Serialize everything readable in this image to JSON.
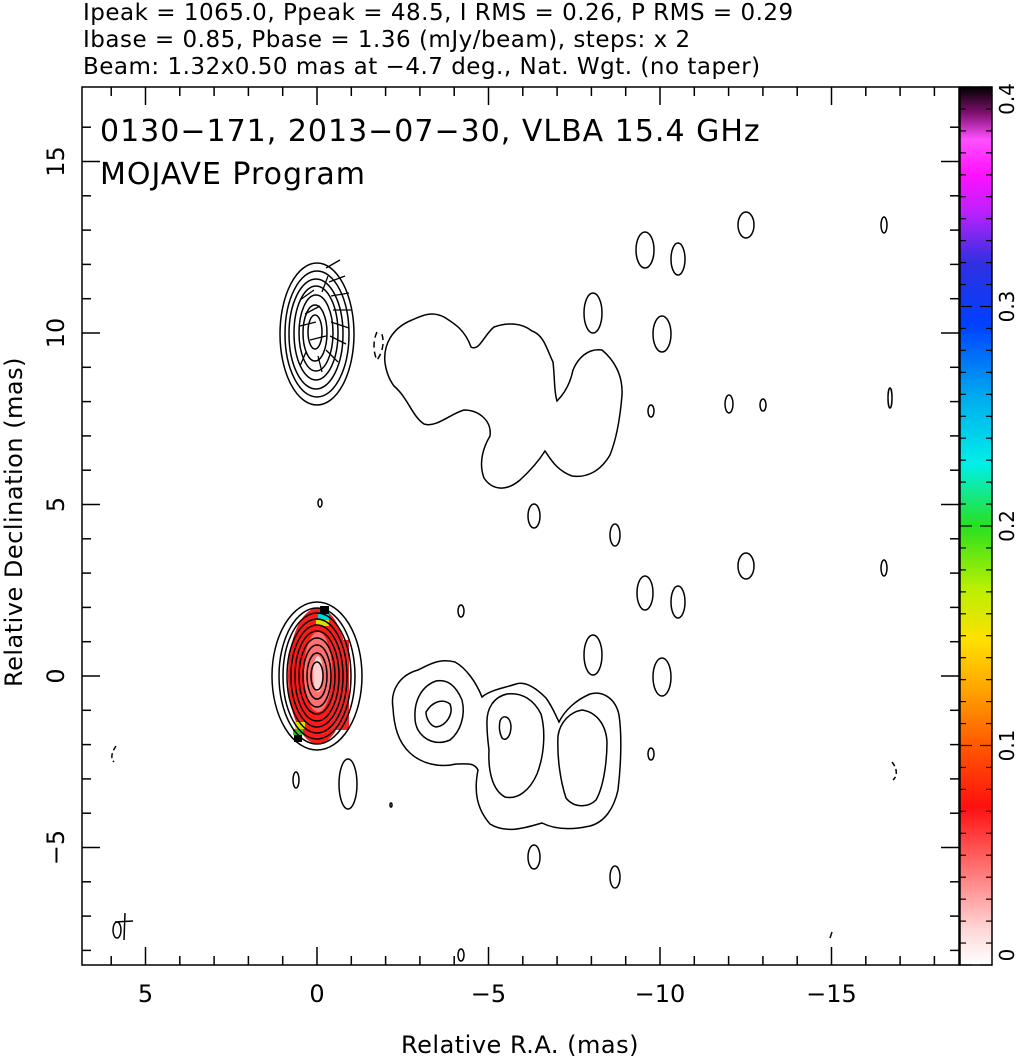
{
  "header": {
    "line1": "Ipeak = 1065.0, Ppeak = 48.5, I RMS = 0.26, P RMS = 0.29",
    "line2": "Ibase = 0.85, Pbase = 1.36 (mJy/beam), steps: x 2",
    "line3": "Beam: 1.32x0.50 mas at −4.7 deg., Nat. Wgt. (no taper)"
  },
  "chart_data": {
    "type": "contour",
    "title": "0130−171, 2013−07−30, VLBA 15.4 GHz",
    "subtitle": "MOJAVE Program",
    "xlabel": "Relative R.A. (mas)",
    "ylabel": "Relative Declination (mas)",
    "xlim": [
      6.9,
      -18.9
    ],
    "ylim": [
      -8.5,
      17.0
    ],
    "xticks": [
      5,
      0,
      -5,
      -10,
      -15
    ],
    "xticklabels": [
      "5",
      "0",
      "−5",
      "−10",
      "−15"
    ],
    "yticks": [
      -5,
      0,
      5,
      10,
      15
    ],
    "yticklabels": [
      "−5",
      "0",
      "5",
      "10",
      "15"
    ],
    "colorbar": {
      "range": [
        0,
        0.4
      ],
      "ticks": [
        0,
        0.1,
        0.2,
        0.3,
        0.4
      ],
      "ticklabels": [
        "0",
        "0.1",
        "0.2",
        "0.3",
        "0.4"
      ]
    },
    "panels": [
      {
        "name": "polarization",
        "y_center": 10
      },
      {
        "name": "total-intensity",
        "y_center": 0
      }
    ],
    "core": {
      "x": -0.1,
      "y": 0.0,
      "n_contours": 10
    },
    "jet_components": [
      {
        "x": -4.1,
        "y": -1.0
      },
      {
        "x": -5.8,
        "y": -2.0
      },
      {
        "x": -7.6,
        "y": -2.3
      }
    ],
    "colors": {
      "contour": "#000000",
      "frame": "#000000"
    }
  }
}
